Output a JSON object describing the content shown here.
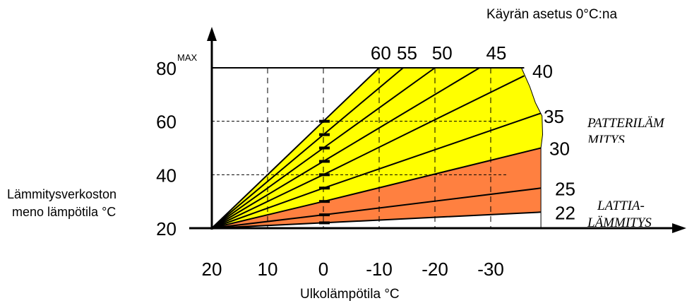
{
  "chart_data": {
    "type": "line",
    "title": "Käyrän asetus 0°C:na",
    "xlabel": "Ulkolämpötila °C",
    "ylabel_line1": "Lämmitysverkoston",
    "ylabel_line2": "meno lämpötila °C",
    "x_ticks": [
      "20",
      "10",
      "0",
      "-10",
      "-20",
      "-30"
    ],
    "y_ticks": [
      "20",
      "40",
      "60",
      "80"
    ],
    "max_label": "MAX",
    "xlim": [
      20,
      -40
    ],
    "ylim": [
      20,
      80
    ],
    "grid": "dashed",
    "origin": {
      "x": 20,
      "y": 20
    },
    "max_supply": 80,
    "series": [
      {
        "name": "60",
        "value_at_0": 60,
        "points": [
          [
            20,
            20
          ],
          [
            0,
            60
          ],
          [
            -10,
            80
          ]
        ]
      },
      {
        "name": "55",
        "value_at_0": 55,
        "points": [
          [
            20,
            20
          ],
          [
            0,
            55
          ],
          [
            -14.3,
            80
          ]
        ]
      },
      {
        "name": "50",
        "value_at_0": 50,
        "points": [
          [
            20,
            20
          ],
          [
            0,
            50
          ],
          [
            -20,
            80
          ]
        ]
      },
      {
        "name": "45",
        "value_at_0": 45,
        "points": [
          [
            20,
            20
          ],
          [
            0,
            45
          ],
          [
            -28,
            80
          ]
        ]
      },
      {
        "name": "40",
        "value_at_0": 40,
        "points": [
          [
            20,
            20
          ],
          [
            0,
            40
          ],
          [
            -36,
            77
          ]
        ]
      },
      {
        "name": "35",
        "value_at_0": 35,
        "points": [
          [
            20,
            20
          ],
          [
            0,
            35
          ],
          [
            -39,
            63
          ]
        ]
      },
      {
        "name": "30",
        "value_at_0": 30,
        "points": [
          [
            20,
            20
          ],
          [
            0,
            30
          ],
          [
            -39,
            50
          ]
        ]
      },
      {
        "name": "25",
        "value_at_0": 25,
        "points": [
          [
            20,
            20
          ],
          [
            0,
            25
          ],
          [
            -39,
            35
          ]
        ]
      },
      {
        "name": "22",
        "value_at_0": 22,
        "points": [
          [
            20,
            20
          ],
          [
            0,
            22
          ],
          [
            -39,
            26
          ]
        ]
      }
    ],
    "zones": [
      {
        "label": "PATTERILÄMMITYS",
        "label_line1": "PATTERILÄM",
        "label_line2": "MITYS",
        "color": "#ffff00",
        "from_series": "30",
        "to_series": "60"
      },
      {
        "label": "LATTIA-LÄMMITYS",
        "label_line1": "LATTIA-",
        "label_line2": "LÄMMITYS",
        "color": "#ff8040",
        "from_series": "22",
        "to_series": "30"
      }
    ],
    "reference_lines": [
      {
        "axis": "y",
        "value": 60
      },
      {
        "axis": "y",
        "value": 40
      },
      {
        "axis": "x",
        "value": 10
      },
      {
        "axis": "x",
        "value": 0
      },
      {
        "axis": "x",
        "value": -10
      },
      {
        "axis": "x",
        "value": -20
      },
      {
        "axis": "x",
        "value": -30
      }
    ]
  }
}
